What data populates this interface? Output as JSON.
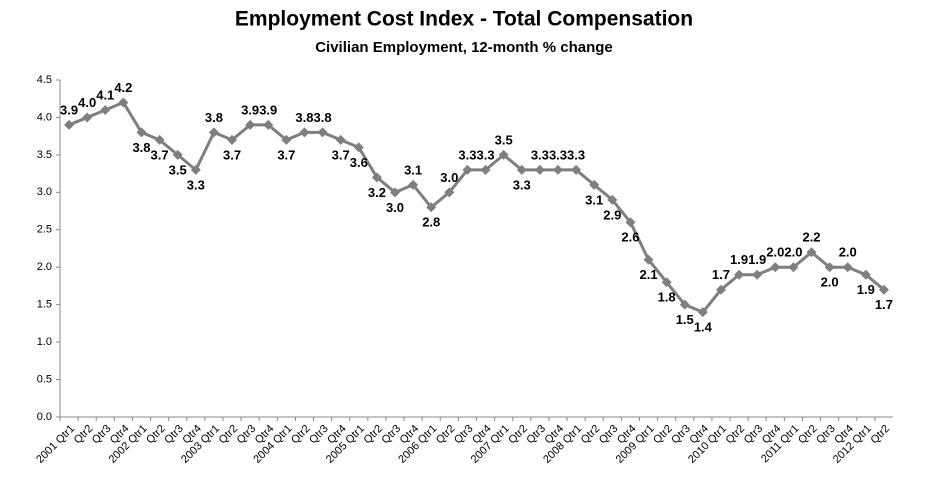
{
  "chart_data": {
    "type": "line",
    "title": "Employment Cost Index - Total Compensation",
    "subtitle": "Civilian Employment, 12-month % change",
    "categories": [
      "2001 Qtr1",
      "Qtr2",
      "Qtr3",
      "Qtr4",
      "2002 Qtr1",
      "Qtr2",
      "Qtr3",
      "Qtr4",
      "2003 Qtr1",
      "Qtr2",
      "Qtr3",
      "Qtr4",
      "2004 Qtr1",
      "Qtr2",
      "Qtr3",
      "Qtr4",
      "2005 Qtr1",
      "Qtr2",
      "Qtr3",
      "Qtr4",
      "2006 Qtr1",
      "Qtr2",
      "Qtr3",
      "Qtr4",
      "2007 Qtr1",
      "Qtr2",
      "Qtr3",
      "Qtr4",
      "2008 Qtr1",
      "Qtr2",
      "Qtr3",
      "Qtr4",
      "2009 Qtr1",
      "Qtr2",
      "Qtr3",
      "Qtr4",
      "2010 Qtr1",
      "Qtr2",
      "Qtr3",
      "Qtr4",
      "2011 Qtr1",
      "Qtr2",
      "Qtr3",
      "Qtr4",
      "2012 Qtr1",
      "Qtr2"
    ],
    "values": [
      3.9,
      4.0,
      4.1,
      4.2,
      3.8,
      3.7,
      3.5,
      3.3,
      3.8,
      3.7,
      3.9,
      3.9,
      3.7,
      3.8,
      3.8,
      3.7,
      3.6,
      3.2,
      3.0,
      3.1,
      2.8,
      3.0,
      3.3,
      3.3,
      3.5,
      3.3,
      3.3,
      3.3,
      3.3,
      3.1,
      2.9,
      2.6,
      2.1,
      1.8,
      1.5,
      1.4,
      1.7,
      1.9,
      1.9,
      2.0,
      2.0,
      2.2,
      2.0,
      2.0,
      1.9,
      1.7
    ],
    "value_labels": [
      "3.9",
      "4.0",
      "4.1",
      "4.2",
      "3.8",
      "3.7",
      "3.5",
      "3.3",
      "3.8",
      "3.7",
      "3.9",
      "3.9",
      "3.7",
      "3.8",
      "3.8",
      "3.7",
      "3.6",
      "3.2",
      "3.0",
      "3.1",
      "2.8",
      "3.0",
      "3.3",
      "3.3",
      "3.5",
      "3.3",
      "3.3",
      "3.3",
      "3.3",
      "3.1",
      "2.9",
      "2.6",
      "2.1",
      "1.8",
      "1.5",
      "1.4",
      "1.7",
      "1.9",
      "1.9",
      "2.0",
      "2.0",
      "2.2",
      "2.0",
      "2.0",
      "1.9",
      "1.7"
    ],
    "color": "#7f7f7f",
    "ylim": [
      0,
      4.5
    ],
    "yticks": [
      {
        "value": 0,
        "label": "0.0"
      },
      0.5,
      {
        "value": 1,
        "label": "1.0"
      },
      1.5,
      {
        "value": 2,
        "label": "2.0"
      },
      2.5,
      {
        "value": 3,
        "label": "3.0"
      },
      3.5,
      {
        "value": 4,
        "label": "4.0"
      },
      4.5
    ],
    "grid": false
  }
}
